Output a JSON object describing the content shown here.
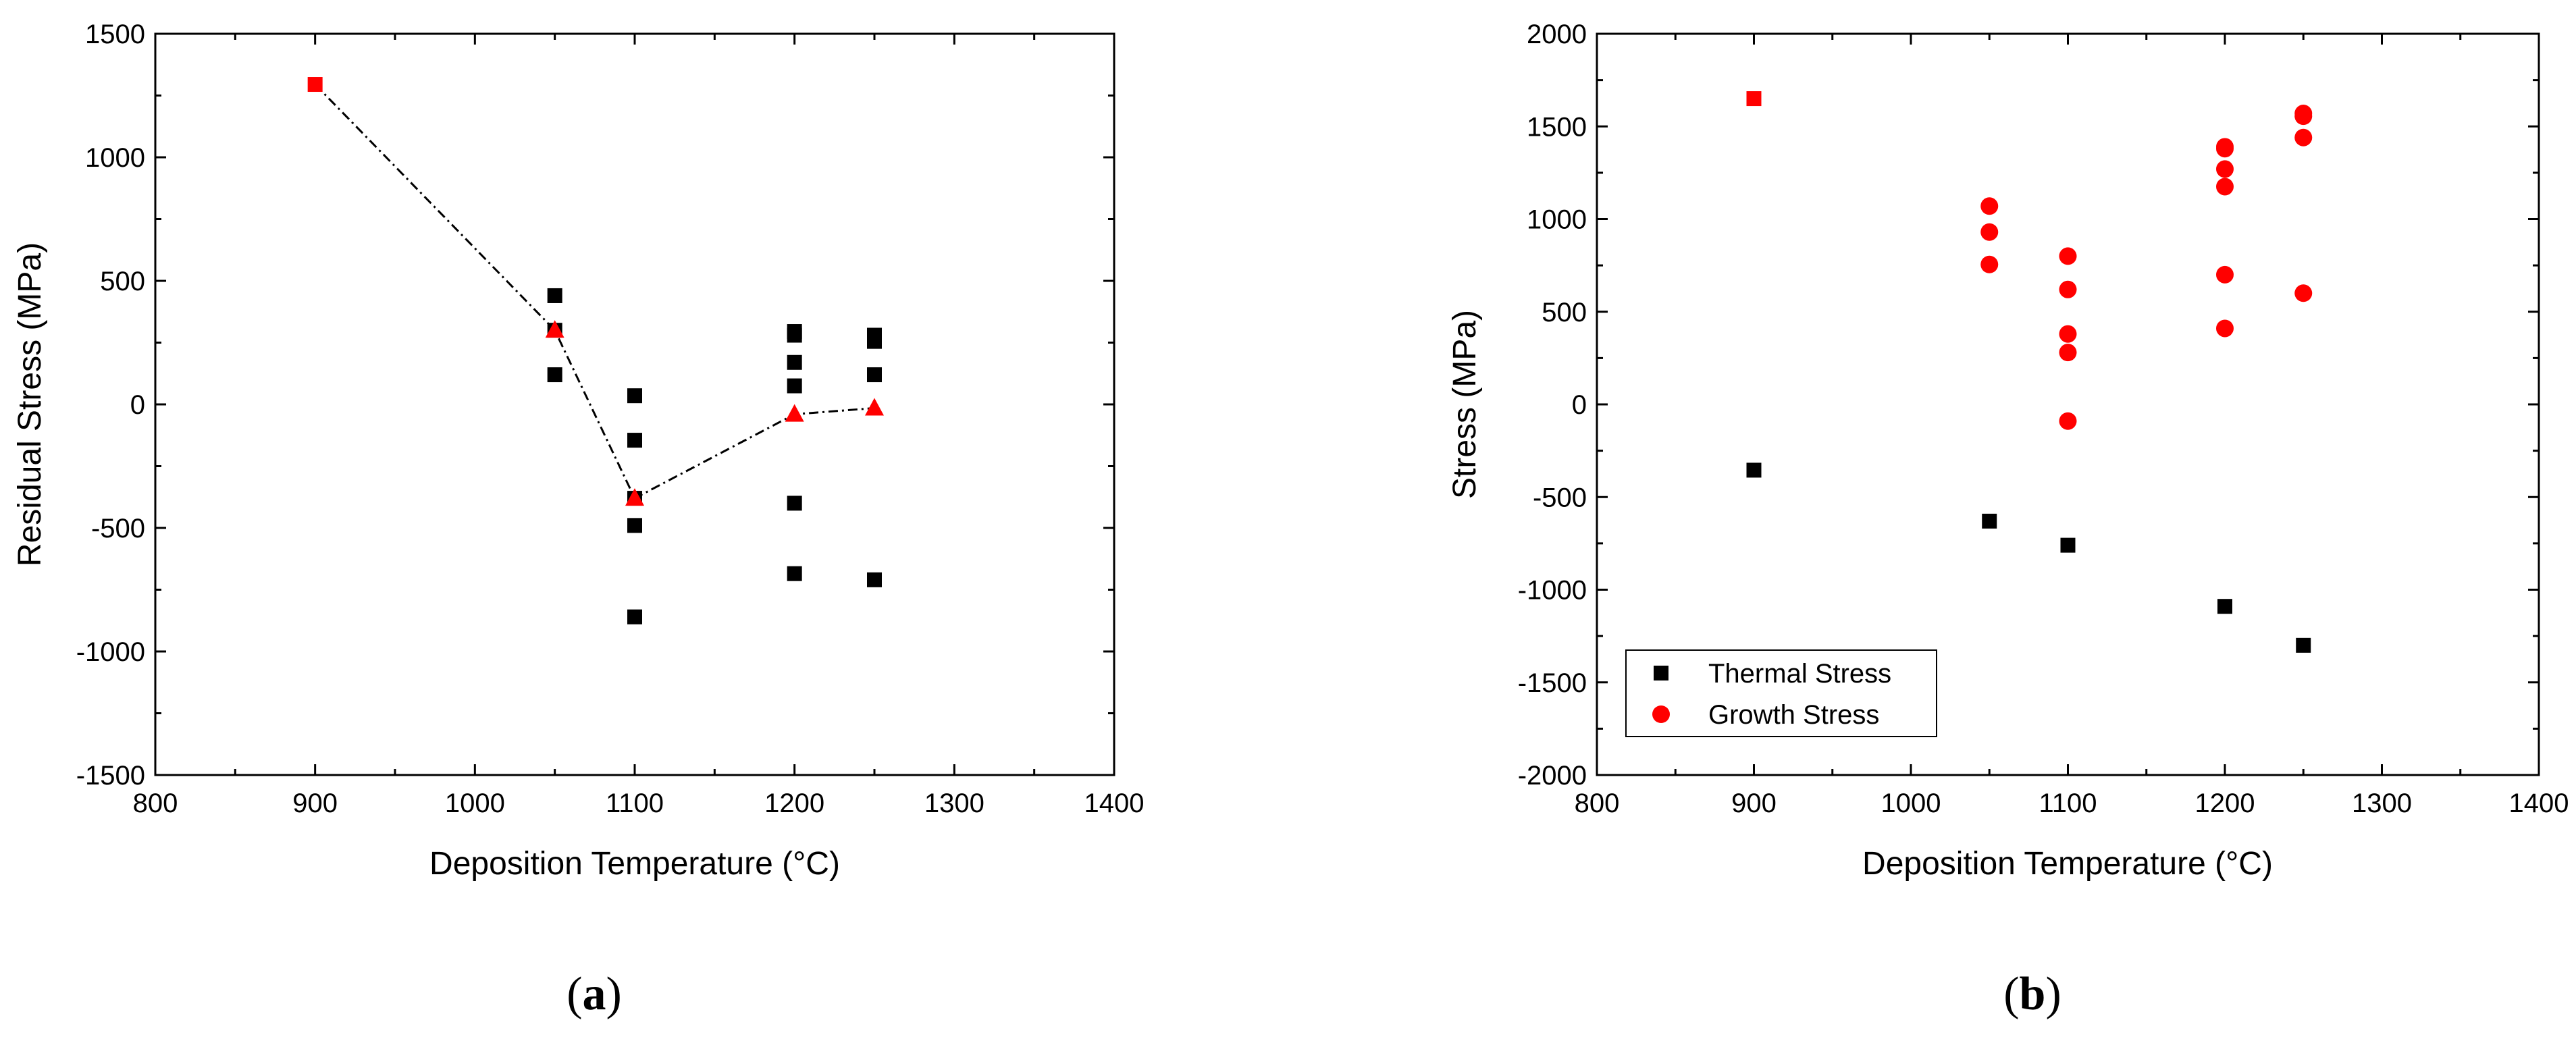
{
  "chart_data": [
    {
      "panel": "a",
      "type": "scatter",
      "caption_open": "(",
      "caption_letter": "a",
      "caption_close": ")",
      "xlabel": "Deposition Temperature (°C)",
      "ylabel": "Residual Stress (MPa)",
      "xlim": [
        800,
        1400
      ],
      "ylim": [
        -1500,
        1500
      ],
      "xticks": [
        800,
        900,
        1000,
        1100,
        1200,
        1300,
        1400
      ],
      "yticks": [
        -1500,
        -1000,
        -500,
        0,
        500,
        1000,
        1500
      ],
      "grid": false,
      "colors": {
        "measured": "#000000",
        "highlight": "#ff0000",
        "line": "#000000"
      },
      "series": [
        {
          "marker": "square",
          "color": "#000000",
          "points": [
            [
              1050,
              440
            ],
            [
              1050,
              300
            ],
            [
              1050,
              120
            ],
            [
              1100,
              35
            ],
            [
              1100,
              -145
            ],
            [
              1100,
              -380
            ],
            [
              1100,
              -490
            ],
            [
              1100,
              -860
            ],
            [
              1200,
              295
            ],
            [
              1200,
              280
            ],
            [
              1200,
              170
            ],
            [
              1200,
              75
            ],
            [
              1200,
              -400
            ],
            [
              1200,
              -685
            ],
            [
              1250,
              280
            ],
            [
              1250,
              255
            ],
            [
              1250,
              120
            ],
            [
              1250,
              -710
            ]
          ]
        },
        {
          "marker": "square",
          "color": "#ff0000",
          "points": [
            [
              900,
              1295
            ]
          ]
        },
        {
          "marker": "triangle",
          "color": "#ff0000",
          "points": [
            [
              1050,
              300
            ],
            [
              1100,
              -380
            ],
            [
              1200,
              -40
            ],
            [
              1250,
              -15
            ]
          ]
        }
      ],
      "line": {
        "style": "dash-dot",
        "points": [
          [
            900,
            1295
          ],
          [
            1050,
            300
          ],
          [
            1100,
            -380
          ],
          [
            1200,
            -40
          ],
          [
            1250,
            -15
          ]
        ]
      }
    },
    {
      "panel": "b",
      "type": "scatter",
      "caption_open": "(",
      "caption_letter": "b",
      "caption_close": ")",
      "xlabel": "Deposition Temperature (°C)",
      "ylabel": "Stress (MPa)",
      "xlim": [
        800,
        1400
      ],
      "ylim": [
        -2000,
        2000
      ],
      "xticks": [
        800,
        900,
        1000,
        1100,
        1200,
        1300,
        1400
      ],
      "yticks": [
        -2000,
        -1500,
        -1000,
        -500,
        0,
        500,
        1000,
        1500,
        2000
      ],
      "grid": false,
      "legend_position": "bottom-left",
      "colors": {
        "thermal": "#000000",
        "growth": "#ff0000"
      },
      "series": [
        {
          "name": "Thermal Stress",
          "marker": "square",
          "color": "#000000",
          "points": [
            [
              900,
              -355
            ],
            [
              1050,
              -630
            ],
            [
              1100,
              -760
            ],
            [
              1200,
              -1090
            ],
            [
              1250,
              -1300
            ]
          ]
        },
        {
          "name": "Growth Stress",
          "marker": "circle",
          "color": "#ff0000",
          "points": [
            [
              1050,
              1070
            ],
            [
              1050,
              930
            ],
            [
              1050,
              755
            ],
            [
              1100,
              800
            ],
            [
              1100,
              620
            ],
            [
              1100,
              380
            ],
            [
              1100,
              280
            ],
            [
              1100,
              -90
            ],
            [
              1200,
              1390
            ],
            [
              1200,
              1380
            ],
            [
              1200,
              1270
            ],
            [
              1200,
              1175
            ],
            [
              1200,
              700
            ],
            [
              1200,
              410
            ],
            [
              1250,
              1570
            ],
            [
              1250,
              1555
            ],
            [
              1250,
              1440
            ],
            [
              1250,
              600
            ]
          ]
        },
        {
          "marker": "square",
          "color": "#ff0000",
          "points": [
            [
              900,
              1650
            ]
          ]
        }
      ]
    }
  ]
}
